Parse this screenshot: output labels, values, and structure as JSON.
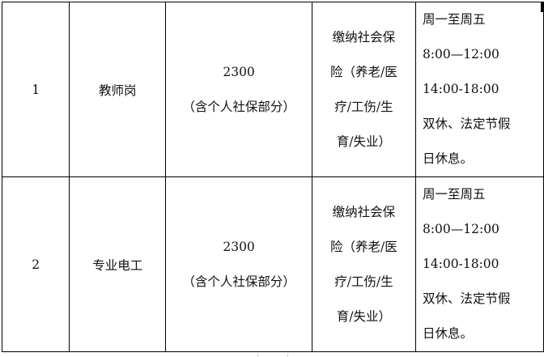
{
  "rows": [
    {
      "index": "1",
      "position": "教师岗",
      "salary": "2300",
      "salary_note": "（含个人社保部分）",
      "insurance_lines": [
        "缴纳社会保",
        "险（养老/医",
        "疗/工伤/生",
        "育/失业）"
      ],
      "hours_lines": [
        "周一至周五",
        "8:00—12:00",
        "14:00-18:00",
        "双休、法定节假",
        "日休息。"
      ]
    },
    {
      "index": "2",
      "position": "专业电工",
      "salary": "2300",
      "salary_note": "（含个人社保部分）",
      "insurance_lines": [
        "缴纳社会保",
        "险（养老/医",
        "疗/工伤/生",
        "育/失业）"
      ],
      "hours_lines": [
        "周一至周五",
        "8:00—12:00",
        "14:00-18:00",
        "双休、法定节假",
        "日休息。"
      ]
    }
  ]
}
